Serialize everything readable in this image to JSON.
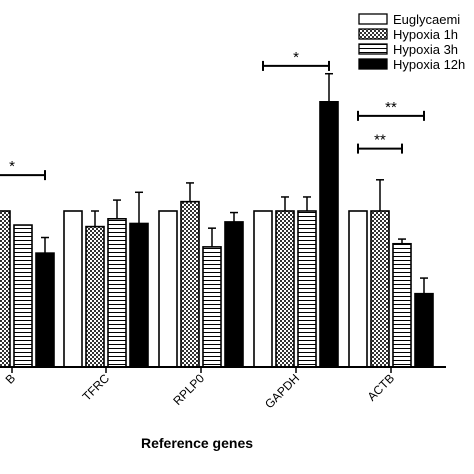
{
  "chart_data": {
    "type": "bar",
    "xlabel": "Reference genes",
    "categories": [
      "B",
      "TFRC",
      "RPLP0",
      "GAPDH",
      "ACTB"
    ],
    "series": [
      {
        "name": "Euglycaemi",
        "pattern": "white",
        "values": [
          null,
          1.0,
          1.0,
          1.0,
          1.0
        ],
        "errors": [
          null,
          0,
          0,
          0,
          0
        ]
      },
      {
        "name": "Hypoxia 1h",
        "pattern": "checker",
        "values": [
          1.0,
          0.9,
          1.06,
          1.0,
          1.0
        ],
        "errors": [
          0,
          0.1,
          0.12,
          0.09,
          0.2
        ]
      },
      {
        "name": "Hypoxia 3h",
        "pattern": "hstripe",
        "values": [
          0.91,
          0.95,
          0.77,
          1.0,
          0.79
        ],
        "errors": [
          0,
          0.12,
          0.12,
          0.09,
          0.03
        ]
      },
      {
        "name": "Hypoxia 12h",
        "pattern": "black",
        "values": [
          0.73,
          0.92,
          0.93,
          1.7,
          0.47
        ],
        "errors": [
          0.1,
          0.2,
          0.06,
          0.18,
          0.1
        ]
      }
    ],
    "significance": [
      {
        "label": "*",
        "category": "B",
        "from_series": 0,
        "to_series": 3,
        "value": 1.23
      },
      {
        "label": "*",
        "category": "GAPDH",
        "from_series": 0,
        "to_series": 3,
        "value": 1.93
      },
      {
        "label": "**",
        "category": "ACTB",
        "from_series": 0,
        "to_series": 2,
        "value": 1.4
      },
      {
        "label": "**",
        "category": "ACTB",
        "from_series": 0,
        "to_series": 3,
        "value": 1.61
      }
    ],
    "legend_position": "top-right",
    "grid": false
  }
}
